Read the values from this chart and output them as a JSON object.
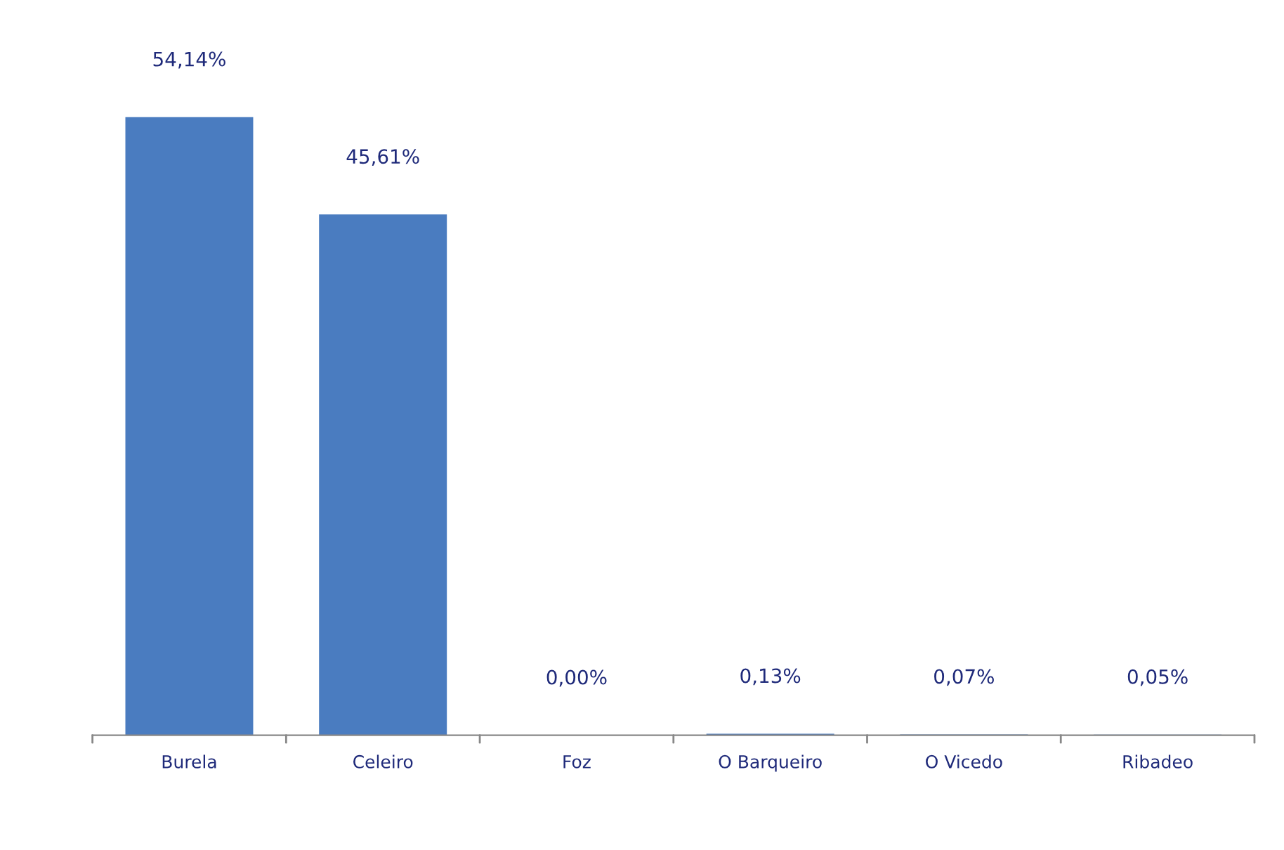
{
  "chart_data": {
    "type": "bar",
    "categories": [
      "Burela",
      "Celeiro",
      "Foz",
      "O Barqueiro",
      "O Vicedo",
      "Ribadeo"
    ],
    "values": [
      54.14,
      45.61,
      0.0,
      0.13,
      0.07,
      0.05
    ],
    "value_labels": [
      "54,14%",
      "45,61%",
      "0,00%",
      "0,13%",
      "0,07%",
      "0,05%"
    ],
    "color": "#4a7cc0",
    "grid": false,
    "legend": false
  }
}
